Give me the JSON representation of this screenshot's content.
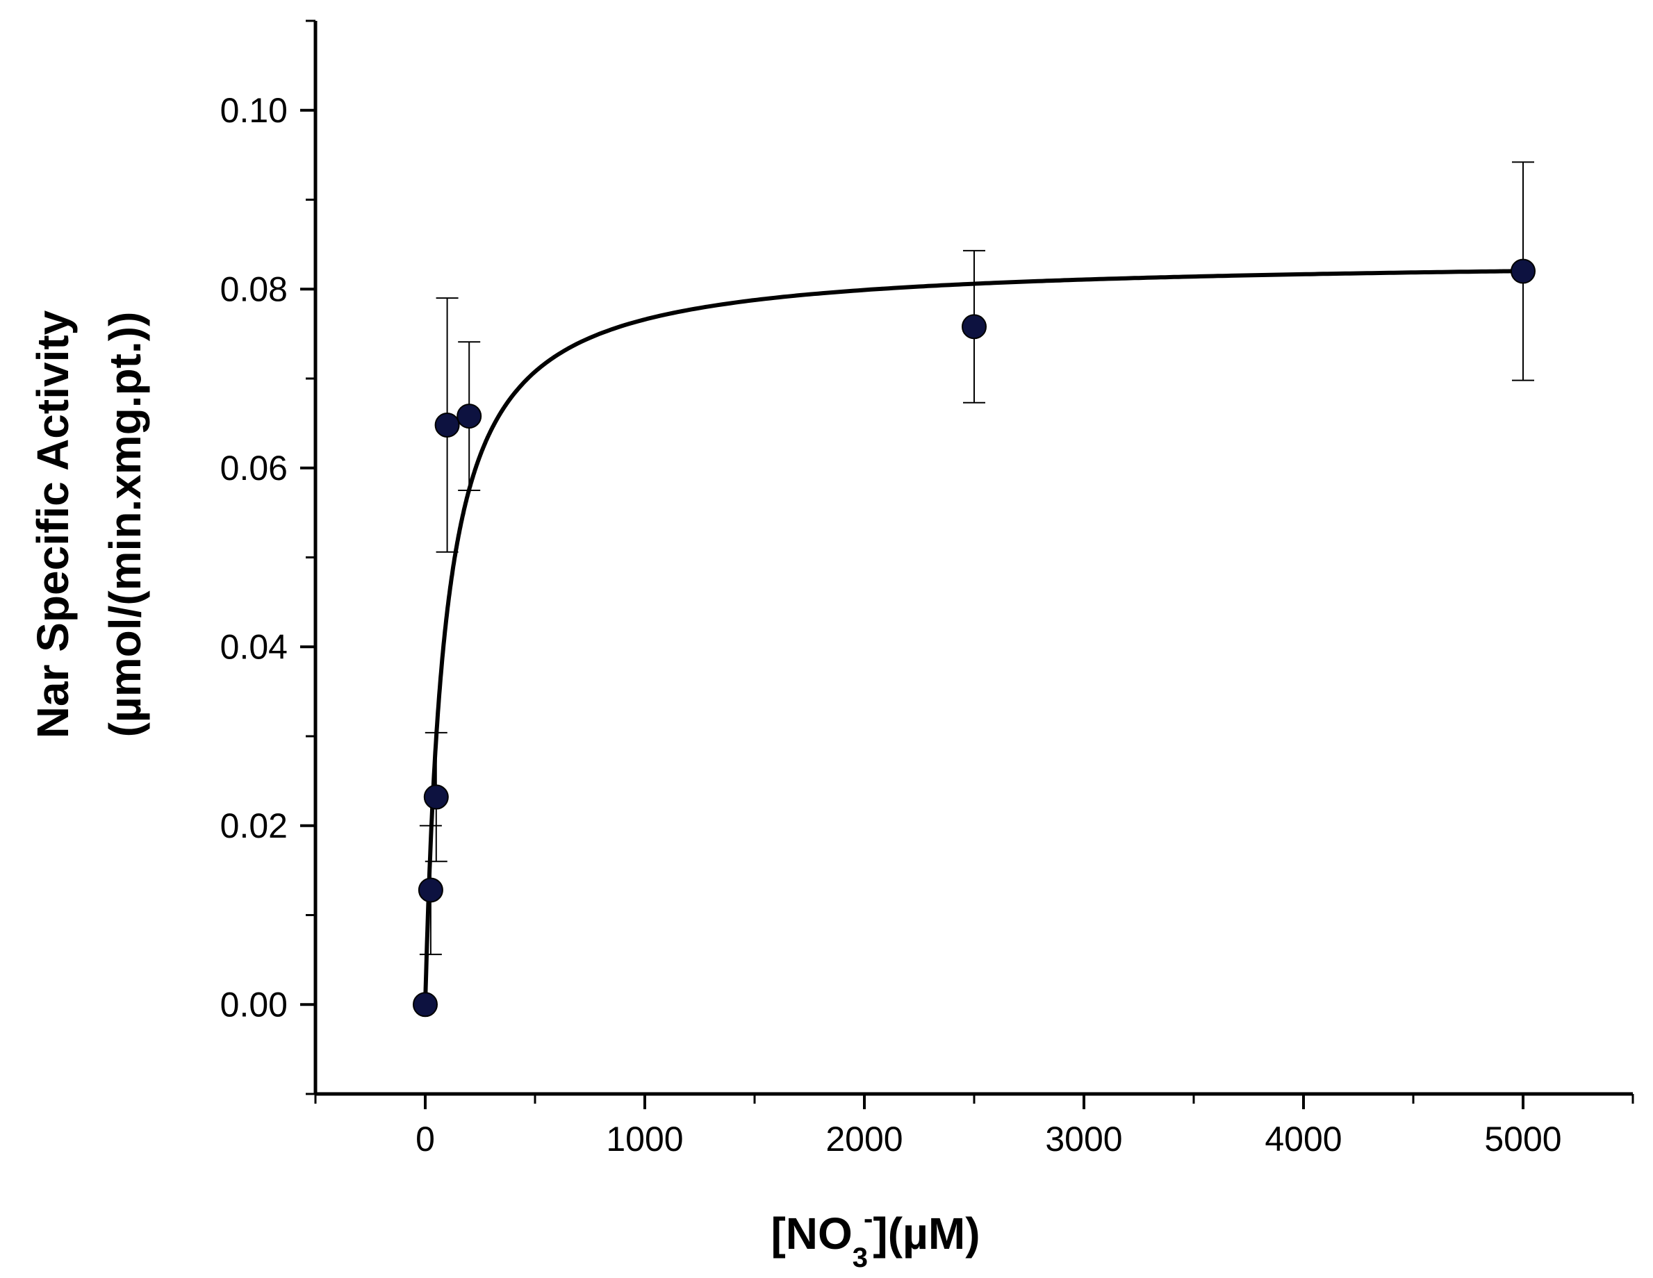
{
  "chart_data": {
    "type": "scatter",
    "title": "",
    "xlabel": {
      "prefix": "[NO",
      "subscript": "3",
      "superscript": "-",
      "suffix": "](µM)"
    },
    "ylabel": {
      "line1": "Nar Specific Activity",
      "line2": "(µmol/(min.xmg.pt.))"
    },
    "xlim": [
      -500,
      5500
    ],
    "ylim": [
      -0.01,
      0.11
    ],
    "x_ticks": [
      0,
      1000,
      2000,
      3000,
      4000,
      5000
    ],
    "x_tick_labels": [
      "0",
      "1000",
      "2000",
      "3000",
      "4000",
      "5000"
    ],
    "x_minor_ticks": [
      -500,
      500,
      1500,
      2500,
      3500,
      4500,
      5500
    ],
    "y_ticks": [
      0.0,
      0.02,
      0.04,
      0.06,
      0.08,
      0.1
    ],
    "y_tick_labels": [
      "0.00",
      "0.02",
      "0.04",
      "0.06",
      "0.08",
      "0.10"
    ],
    "y_minor_ticks": [
      -0.01,
      0.01,
      0.03,
      0.05,
      0.07,
      0.09,
      0.11
    ],
    "grid": false,
    "legend": "none",
    "series": [
      {
        "kind": "points",
        "color": "#0d1240",
        "points": [
          {
            "x": 0,
            "y": 0.0,
            "err": 0.0
          },
          {
            "x": 25,
            "y": 0.0128,
            "err": 0.0072
          },
          {
            "x": 50,
            "y": 0.0232,
            "err": 0.0072
          },
          {
            "x": 100,
            "y": 0.0648,
            "err": 0.0142
          },
          {
            "x": 200,
            "y": 0.0658,
            "err": 0.0083
          },
          {
            "x": 2500,
            "y": 0.0758,
            "err": 0.0085
          },
          {
            "x": 5000,
            "y": 0.082,
            "err": 0.0122
          }
        ]
      },
      {
        "kind": "fit",
        "color": "#000000",
        "model": "michaelis-menten",
        "vmax": 0.0835,
        "km": 90
      }
    ]
  }
}
